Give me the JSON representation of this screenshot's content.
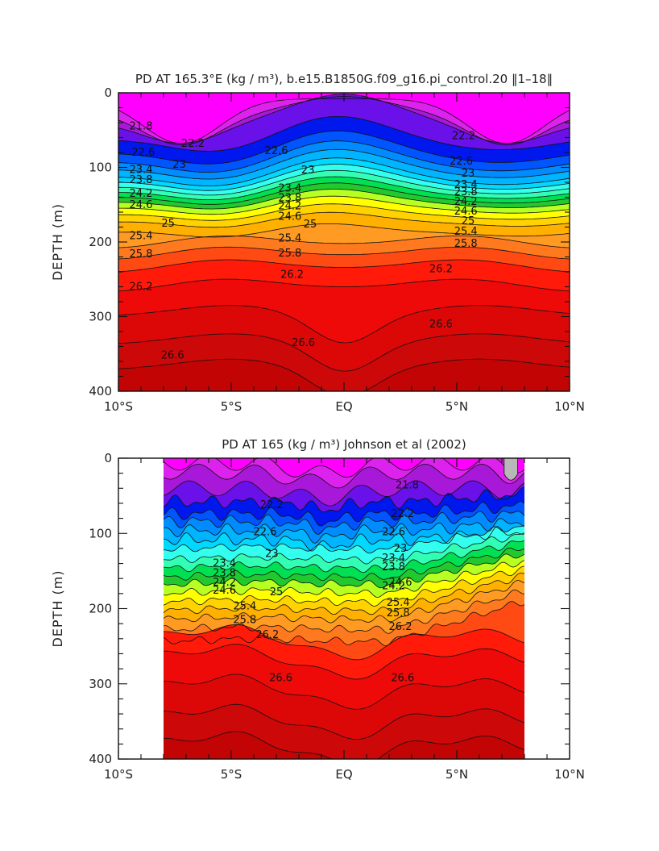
{
  "chart_data": [
    {
      "type": "contour",
      "title": "PD AT 165.3°E (kg / m³), b.e15.B1850G.f09_g16.pi_control.20 ‖1–18‖",
      "xlabel": "",
      "ylabel": "DEPTH (m)",
      "x_ticks": [
        "10°S",
        "5°S",
        "EQ",
        "5°N",
        "10°N"
      ],
      "y_ticks": [
        "0",
        "100",
        "200",
        "300",
        "400"
      ],
      "xlim": [
        -10,
        10
      ],
      "ylim": [
        0,
        400
      ],
      "y_inverted": true,
      "data_extent": [
        -10,
        10
      ],
      "contour_levels": [
        21.8,
        22.2,
        22.6,
        23,
        23.4,
        23.8,
        24.2,
        24.6,
        25,
        25.4,
        25.8,
        26.2,
        26.6
      ],
      "contour_labels": [
        {
          "text": "21.8",
          "x": -9.0,
          "y": 45
        },
        {
          "text": "22.2",
          "x": -6.7,
          "y": 68
        },
        {
          "text": "22.6",
          "x": -8.9,
          "y": 80
        },
        {
          "text": "23.4",
          "x": -9.0,
          "y": 103
        },
        {
          "text": "23",
          "x": -7.3,
          "y": 96
        },
        {
          "text": "23.8",
          "x": -9.0,
          "y": 117
        },
        {
          "text": "24.2",
          "x": -9.0,
          "y": 135
        },
        {
          "text": "24.6",
          "x": -9.0,
          "y": 150
        },
        {
          "text": "25",
          "x": -7.8,
          "y": 175
        },
        {
          "text": "25.4",
          "x": -9.0,
          "y": 192
        },
        {
          "text": "25.8",
          "x": -9.0,
          "y": 216
        },
        {
          "text": "26.2",
          "x": -9.0,
          "y": 260
        },
        {
          "text": "26.6",
          "x": -7.6,
          "y": 352
        },
        {
          "text": "22.6",
          "x": -3.0,
          "y": 78
        },
        {
          "text": "23",
          "x": -1.6,
          "y": 104
        },
        {
          "text": "23.4",
          "x": -2.4,
          "y": 128
        },
        {
          "text": "23.8",
          "x": -2.4,
          "y": 141
        },
        {
          "text": "24.2",
          "x": -2.4,
          "y": 152
        },
        {
          "text": "24.6",
          "x": -2.4,
          "y": 166
        },
        {
          "text": "25",
          "x": -1.5,
          "y": 176
        },
        {
          "text": "25.4",
          "x": -2.4,
          "y": 195
        },
        {
          "text": "25.8",
          "x": -2.4,
          "y": 215
        },
        {
          "text": "26.2",
          "x": -2.3,
          "y": 244
        },
        {
          "text": "26.6",
          "x": -1.8,
          "y": 335
        },
        {
          "text": "22.2",
          "x": 5.3,
          "y": 58
        },
        {
          "text": "22.6",
          "x": 5.2,
          "y": 92
        },
        {
          "text": "23",
          "x": 5.5,
          "y": 108
        },
        {
          "text": "23.4",
          "x": 5.4,
          "y": 123
        },
        {
          "text": "23.8",
          "x": 5.4,
          "y": 133
        },
        {
          "text": "24.2",
          "x": 5.4,
          "y": 146
        },
        {
          "text": "24.6",
          "x": 5.4,
          "y": 159
        },
        {
          "text": "25",
          "x": 5.5,
          "y": 172
        },
        {
          "text": "25.4",
          "x": 5.4,
          "y": 186
        },
        {
          "text": "25.8",
          "x": 5.4,
          "y": 202
        },
        {
          "text": "26.2",
          "x": 4.3,
          "y": 236
        },
        {
          "text": "26.6",
          "x": 4.3,
          "y": 310
        }
      ]
    },
    {
      "type": "contour",
      "title": "PD AT 165 (kg / m³) Johnson et al (2002)",
      "xlabel": "",
      "ylabel": "DEPTH (m)",
      "x_ticks": [
        "10°S",
        "5°S",
        "EQ",
        "5°N",
        "10°N"
      ],
      "y_ticks": [
        "0",
        "100",
        "200",
        "300",
        "400"
      ],
      "xlim": [
        -10,
        10
      ],
      "ylim": [
        0,
        400
      ],
      "y_inverted": true,
      "data_extent": [
        -8,
        8
      ],
      "contour_levels": [
        21.8,
        22.2,
        22.6,
        23,
        23.4,
        23.8,
        24.2,
        24.6,
        25,
        25.4,
        25.8,
        26.2,
        26.6
      ],
      "contour_labels": [
        {
          "text": "22.2",
          "x": -3.2,
          "y": 62
        },
        {
          "text": "22.6",
          "x": -3.5,
          "y": 98
        },
        {
          "text": "23",
          "x": -3.2,
          "y": 127
        },
        {
          "text": "23.4",
          "x": -5.3,
          "y": 140
        },
        {
          "text": "23.8",
          "x": -5.3,
          "y": 153
        },
        {
          "text": "24.2",
          "x": -5.3,
          "y": 165
        },
        {
          "text": "24.6",
          "x": -5.3,
          "y": 176
        },
        {
          "text": "25",
          "x": -3.0,
          "y": 178
        },
        {
          "text": "25.4",
          "x": -4.4,
          "y": 197
        },
        {
          "text": "25.8",
          "x": -4.4,
          "y": 215
        },
        {
          "text": "26.2",
          "x": -3.4,
          "y": 235
        },
        {
          "text": "26.6",
          "x": -2.8,
          "y": 292
        },
        {
          "text": "21.8",
          "x": 2.8,
          "y": 36
        },
        {
          "text": "22.2",
          "x": 2.6,
          "y": 74
        },
        {
          "text": "22.6",
          "x": 2.2,
          "y": 98
        },
        {
          "text": "23",
          "x": 2.5,
          "y": 120
        },
        {
          "text": "23.4",
          "x": 2.2,
          "y": 133
        },
        {
          "text": "23.8",
          "x": 2.2,
          "y": 145
        },
        {
          "text": "24.6",
          "x": 2.5,
          "y": 165
        },
        {
          "text": "24.2",
          "x": 2.2,
          "y": 170
        },
        {
          "text": "25.4",
          "x": 2.4,
          "y": 192
        },
        {
          "text": "25.8",
          "x": 2.4,
          "y": 206
        },
        {
          "text": "26.2",
          "x": 2.5,
          "y": 224
        },
        {
          "text": "26.6",
          "x": 2.6,
          "y": 292
        }
      ]
    }
  ],
  "colors": {
    "bands": [
      "#ff00ff",
      "#dd22ee",
      "#a818d8",
      "#6a10e8",
      "#0018ee",
      "#0055ff",
      "#008cff",
      "#00b4ff",
      "#00d8ff",
      "#33ffee",
      "#33ffb4",
      "#00e052",
      "#22c92e",
      "#b8ff22",
      "#ffff00",
      "#ffd200",
      "#ffb000",
      "#ff9a22",
      "#ff7a1e",
      "#ff4a14",
      "#ff1a0a",
      "#ee0a08",
      "#dc0808",
      "#cc0808",
      "#c20404"
    ],
    "missing": "#b8b8b8"
  }
}
